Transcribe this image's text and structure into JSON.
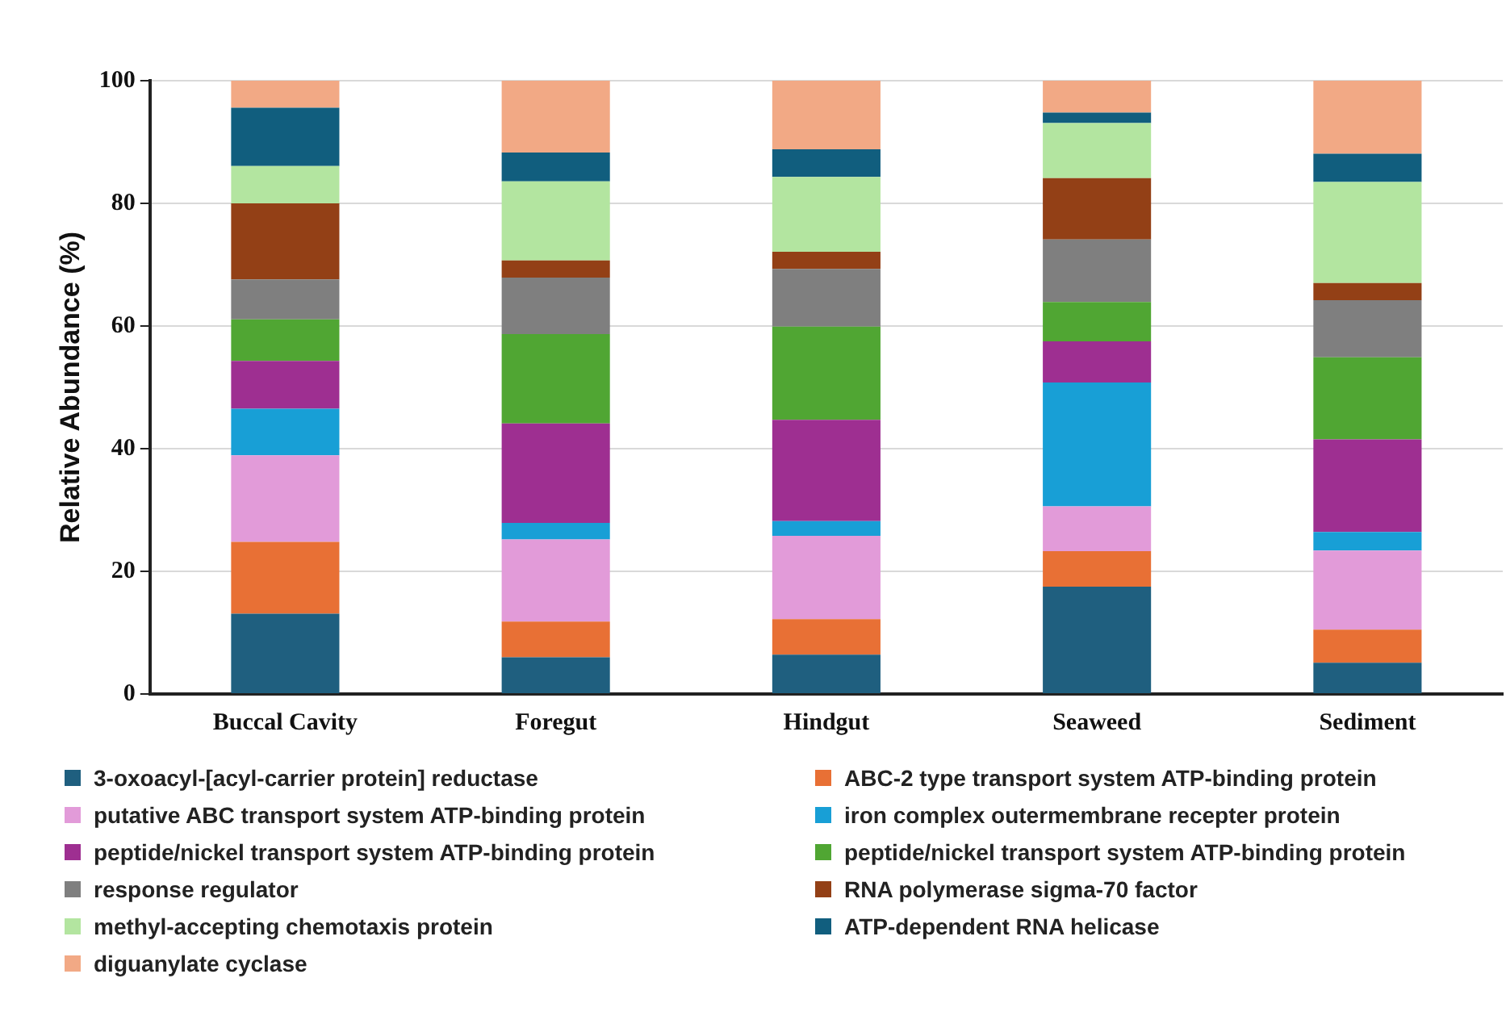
{
  "chart_data": {
    "type": "bar",
    "stacked": true,
    "ylabel": "Relative Abundance (%)",
    "categories": [
      "Buccal Cavity",
      "Foregut",
      "Hindgut",
      "Seaweed",
      "Sediment"
    ],
    "ylim": [
      0,
      100
    ],
    "yticks": [
      0,
      20,
      40,
      60,
      80,
      100
    ],
    "grid": "y",
    "legend": "bottom",
    "series": [
      {
        "name": "3-oxoacyl-[acyl-carrier protein] reductase",
        "color": "#1f5f7f",
        "values": [
          13.1,
          6.0,
          6.4,
          17.5,
          5.1
        ]
      },
      {
        "name": "ABC-2 type transport system ATP-binding protein",
        "color": "#e87035",
        "values": [
          11.7,
          5.8,
          5.8,
          5.8,
          5.4
        ]
      },
      {
        "name": "putative ABC transport system ATP-binding protein",
        "color": "#e29bd9",
        "values": [
          14.1,
          13.4,
          13.6,
          7.3,
          12.9
        ]
      },
      {
        "name": "iron complex outermembrane recepter protein",
        "color": "#189fd6",
        "values": [
          7.6,
          2.7,
          2.4,
          20.2,
          3.0
        ]
      },
      {
        "name": "peptide/nickel transport system ATP-binding protein",
        "color": "#9e2f91",
        "values": [
          7.8,
          16.2,
          16.5,
          6.7,
          15.1
        ]
      },
      {
        "name": "peptide/nickel transport system ATP-binding protein",
        "color": "#50a633",
        "values": [
          6.8,
          14.6,
          15.2,
          6.4,
          13.4
        ]
      },
      {
        "name": "response regulator",
        "color": "#7f7f7f",
        "values": [
          6.5,
          9.2,
          9.4,
          10.2,
          9.3
        ]
      },
      {
        "name": "RNA polymerase sigma-70 factor",
        "color": "#934016",
        "values": [
          12.4,
          2.8,
          2.8,
          10.0,
          2.8
        ]
      },
      {
        "name": "methyl-accepting chemotaxis protein",
        "color": "#b3e5a0",
        "values": [
          6.1,
          12.9,
          12.2,
          9.0,
          16.5
        ]
      },
      {
        "name": "ATP-dependent RNA helicase",
        "color": "#115e7e",
        "values": [
          9.5,
          4.7,
          4.5,
          1.7,
          4.6
        ]
      },
      {
        "name": "diguanylate cyclase",
        "color": "#f2a985",
        "values": [
          4.4,
          11.7,
          11.2,
          5.2,
          11.9
        ]
      }
    ]
  }
}
